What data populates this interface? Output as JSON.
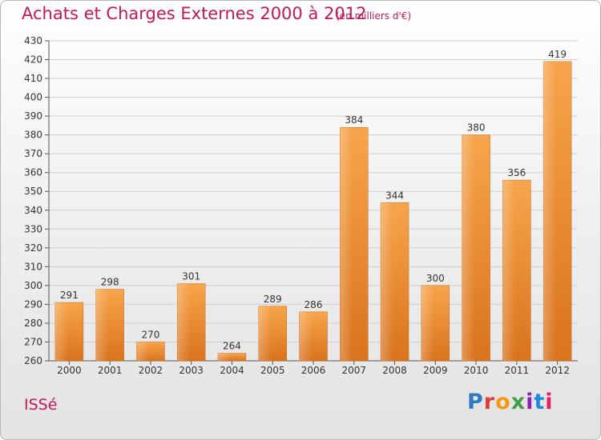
{
  "header": {
    "title": "Achats et Charges Externes 2000 à 2012",
    "subtitle": "(en milliers d'€)"
  },
  "footer": {
    "city": "ISSé",
    "logo": "Proxiti",
    "logo_colors": [
      "#2e7bc4",
      "#e53935",
      "#f39c12",
      "#43a047",
      "#8e24aa",
      "#1e88e5",
      "#e91e63"
    ]
  },
  "chart_data": {
    "type": "bar",
    "categories": [
      "2000",
      "2001",
      "2002",
      "2003",
      "2004",
      "2005",
      "2006",
      "2007",
      "2008",
      "2009",
      "2010",
      "2011",
      "2012"
    ],
    "values": [
      291,
      298,
      270,
      301,
      264,
      289,
      286,
      384,
      344,
      300,
      380,
      356,
      419
    ],
    "data_labels": [
      "291",
      "298",
      "270",
      "301",
      "264",
      "289",
      "286",
      "384",
      "344",
      "300",
      "380",
      "356",
      "419"
    ],
    "ylim": [
      260,
      430
    ],
    "yticks": [
      260,
      270,
      280,
      290,
      300,
      310,
      320,
      330,
      340,
      350,
      360,
      370,
      380,
      390,
      400,
      410,
      420,
      430
    ],
    "grid": true,
    "bar_color": "#f08c2e",
    "xlabel": "",
    "ylabel": ""
  }
}
